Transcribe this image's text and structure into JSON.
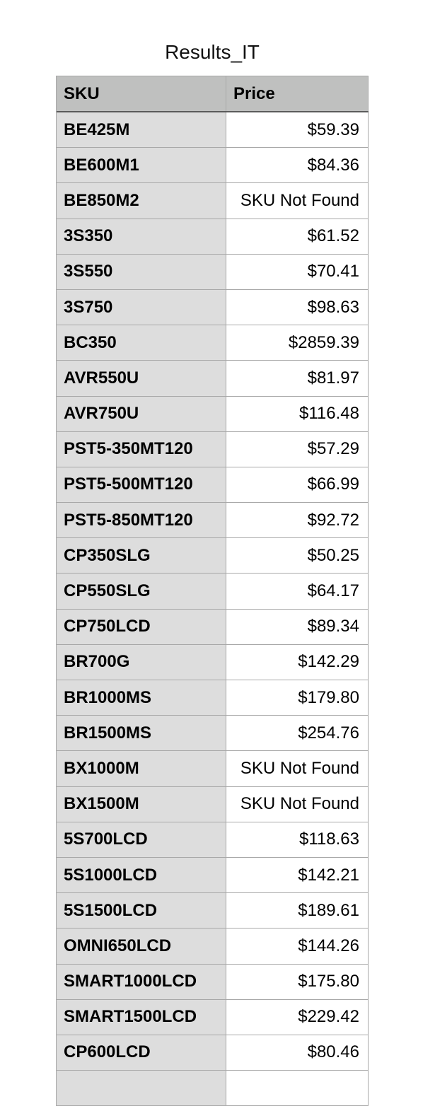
{
  "title": "Results_IT",
  "table": {
    "headers": [
      "SKU",
      "Price"
    ],
    "rows": [
      {
        "sku": "BE425M",
        "price": "$59.39"
      },
      {
        "sku": "BE600M1",
        "price": "$84.36"
      },
      {
        "sku": "BE850M2",
        "price": "SKU Not Found"
      },
      {
        "sku": "3S350",
        "price": "$61.52"
      },
      {
        "sku": "3S550",
        "price": "$70.41"
      },
      {
        "sku": "3S750",
        "price": "$98.63"
      },
      {
        "sku": "BC350",
        "price": "$2859.39"
      },
      {
        "sku": "AVR550U",
        "price": "$81.97"
      },
      {
        "sku": "AVR750U",
        "price": "$116.48"
      },
      {
        "sku": "PST5-350MT120",
        "price": "$57.29"
      },
      {
        "sku": "PST5-500MT120",
        "price": "$66.99"
      },
      {
        "sku": "PST5-850MT120",
        "price": "$92.72"
      },
      {
        "sku": "CP350SLG",
        "price": "$50.25"
      },
      {
        "sku": "CP550SLG",
        "price": "$64.17"
      },
      {
        "sku": "CP750LCD",
        "price": "$89.34"
      },
      {
        "sku": "BR700G",
        "price": "$142.29"
      },
      {
        "sku": "BR1000MS",
        "price": "$179.80"
      },
      {
        "sku": "BR1500MS",
        "price": "$254.76"
      },
      {
        "sku": "BX1000M",
        "price": "SKU Not Found"
      },
      {
        "sku": "BX1500M",
        "price": "SKU Not Found"
      },
      {
        "sku": "5S700LCD",
        "price": "$118.63"
      },
      {
        "sku": "5S1000LCD",
        "price": "$142.21"
      },
      {
        "sku": "5S1500LCD",
        "price": "$189.61"
      },
      {
        "sku": "OMNI650LCD",
        "price": "$144.26"
      },
      {
        "sku": "SMART1000LCD",
        "price": "$175.80"
      },
      {
        "sku": "SMART1500LCD",
        "price": "$229.42"
      },
      {
        "sku": "CP600LCD",
        "price": "$80.46"
      },
      {
        "sku": "",
        "price": ""
      }
    ]
  }
}
